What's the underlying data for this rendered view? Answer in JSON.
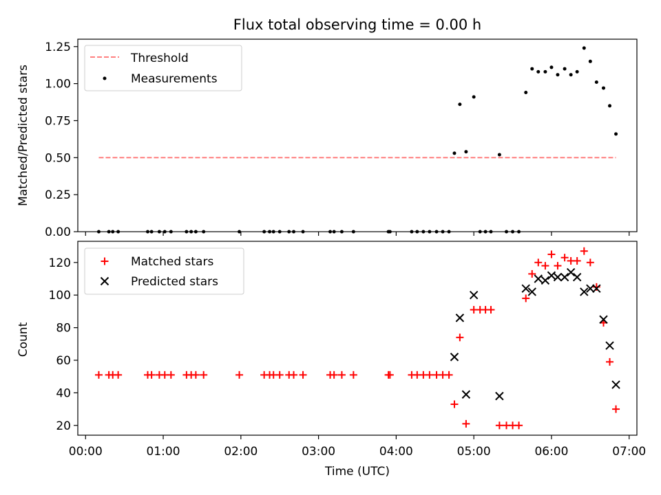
{
  "figure_title": "Flux total observing time = 0.00 h",
  "colors": {
    "threshold": "#ff7f7f",
    "measurements": "#000000",
    "matched": "#ff0000",
    "predicted": "#000000"
  },
  "chart_data": [
    {
      "type": "scatter",
      "ylabel": "Matched/Predicted stars",
      "ylim": [
        0,
        1.3
      ],
      "yticks": [
        0.0,
        0.25,
        0.5,
        0.75,
        1.0,
        1.25
      ],
      "ytick_labels": [
        "0.00",
        "0.25",
        "0.50",
        "0.75",
        "1.00",
        "1.25"
      ],
      "xlim_hours": [
        -0.1,
        7.1
      ],
      "grid": false,
      "legend_position": "top-left",
      "legend": [
        "Threshold",
        "Measurements"
      ],
      "series": [
        {
          "name": "Threshold",
          "style": "dashed-line",
          "x": [
            0.17,
            6.83
          ],
          "y": [
            0.5,
            0.5
          ]
        },
        {
          "name": "Measurements",
          "style": "dot",
          "x": [
            0.17,
            0.3,
            0.35,
            0.42,
            0.8,
            0.85,
            0.95,
            1.02,
            1.1,
            1.3,
            1.36,
            1.42,
            1.52,
            1.98,
            2.3,
            2.37,
            2.42,
            2.5,
            2.62,
            2.68,
            2.8,
            3.15,
            3.2,
            3.3,
            3.45,
            3.9,
            3.92,
            4.2,
            4.27,
            4.35,
            4.43,
            4.52,
            4.6,
            4.68,
            4.75,
            4.82,
            4.9,
            5.0,
            5.08,
            5.15,
            5.22,
            5.33,
            5.42,
            5.5,
            5.58,
            5.67,
            5.75,
            5.83,
            5.92,
            6.0,
            6.08,
            6.17,
            6.25,
            6.33,
            6.42,
            6.5,
            6.58,
            6.67,
            6.75,
            6.83
          ],
          "y": [
            0,
            0,
            0,
            0,
            0,
            0,
            0,
            0,
            0,
            0,
            0,
            0,
            0,
            0,
            0,
            0,
            0,
            0,
            0,
            0,
            0,
            0,
            0,
            0,
            0,
            0,
            0,
            0,
            0,
            0,
            0,
            0,
            0,
            0,
            0.53,
            0.86,
            0.54,
            0.91,
            0,
            0,
            0,
            0.52,
            0,
            0,
            0,
            0.94,
            1.1,
            1.08,
            1.08,
            1.11,
            1.06,
            1.1,
            1.06,
            1.08,
            1.24,
            1.15,
            1.01,
            0.97,
            0.85,
            0.66
          ]
        }
      ]
    },
    {
      "type": "scatter",
      "xlabel": "Time (UTC)",
      "ylabel": "Count",
      "ylim": [
        14,
        133
      ],
      "yticks": [
        20,
        40,
        60,
        80,
        100,
        120
      ],
      "ytick_labels": [
        "20",
        "40",
        "60",
        "80",
        "100",
        "120"
      ],
      "xlim_hours": [
        -0.1,
        7.1
      ],
      "xticks_hours": [
        0,
        1,
        2,
        3,
        4,
        5,
        6,
        7
      ],
      "xtick_labels": [
        "00:00",
        "01:00",
        "02:00",
        "03:00",
        "04:00",
        "05:00",
        "06:00",
        "07:00"
      ],
      "grid": false,
      "legend_position": "top-left",
      "legend": [
        "Matched stars",
        "Predicted stars"
      ],
      "series": [
        {
          "name": "Matched stars",
          "style": "plus",
          "x": [
            0.17,
            0.3,
            0.35,
            0.42,
            0.8,
            0.85,
            0.95,
            1.02,
            1.1,
            1.3,
            1.36,
            1.42,
            1.52,
            1.98,
            2.3,
            2.37,
            2.42,
            2.5,
            2.62,
            2.68,
            2.8,
            3.15,
            3.2,
            3.3,
            3.45,
            3.9,
            3.92,
            4.2,
            4.27,
            4.35,
            4.43,
            4.52,
            4.6,
            4.68,
            4.75,
            4.82,
            4.9,
            5.0,
            5.08,
            5.15,
            5.22,
            5.33,
            5.42,
            5.5,
            5.58,
            5.67,
            5.75,
            5.83,
            5.92,
            6.0,
            6.08,
            6.17,
            6.25,
            6.33,
            6.42,
            6.5,
            6.58,
            6.67,
            6.75,
            6.83
          ],
          "y": [
            51,
            51,
            51,
            51,
            51,
            51,
            51,
            51,
            51,
            51,
            51,
            51,
            51,
            51,
            51,
            51,
            51,
            51,
            51,
            51,
            51,
            51,
            51,
            51,
            51,
            51,
            51,
            51,
            51,
            51,
            51,
            51,
            51,
            51,
            33,
            74,
            21,
            91,
            91,
            91,
            91,
            20,
            20,
            20,
            20,
            98,
            113,
            120,
            118,
            125,
            118,
            123,
            121,
            121,
            127,
            120,
            105,
            83,
            59,
            30
          ]
        },
        {
          "name": "Predicted stars",
          "style": "x",
          "x": [
            4.75,
            4.82,
            4.9,
            5.0,
            5.33,
            5.67,
            5.75,
            5.83,
            5.92,
            6.0,
            6.08,
            6.17,
            6.25,
            6.33,
            6.42,
            6.5,
            6.58,
            6.67,
            6.75,
            6.83
          ],
          "y": [
            62,
            86,
            39,
            100,
            38,
            104,
            102,
            110,
            109,
            112,
            111,
            111,
            114,
            111,
            102,
            104,
            104,
            85,
            69,
            45
          ]
        }
      ]
    }
  ]
}
